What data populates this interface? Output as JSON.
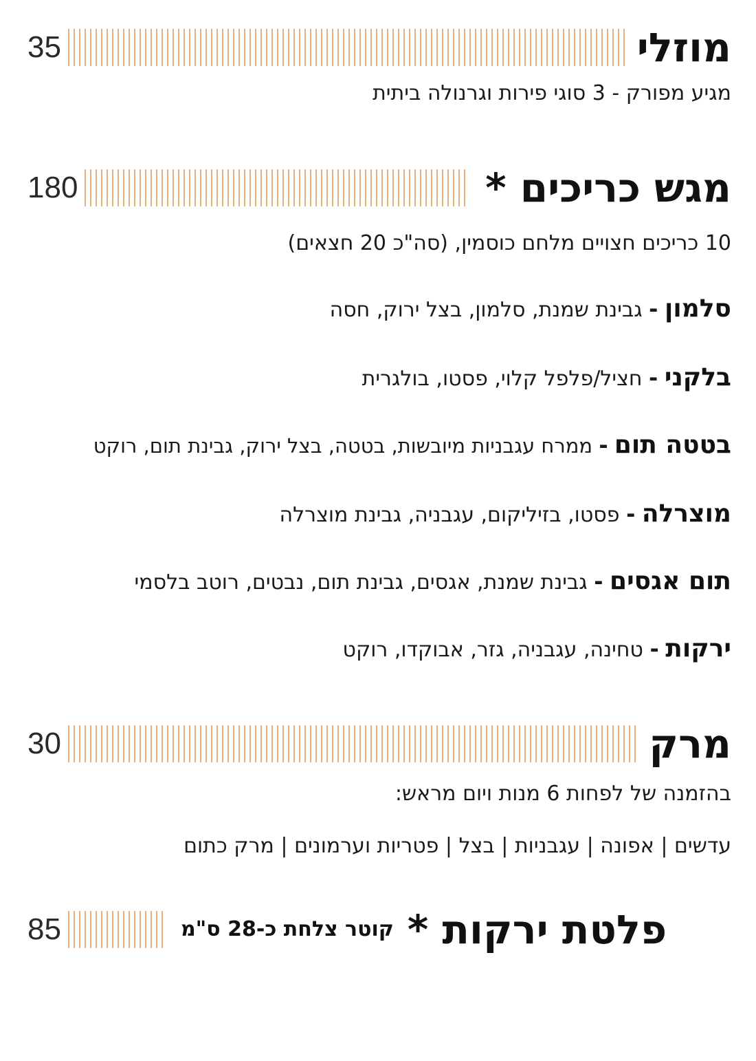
{
  "items": [
    {
      "title": "מוזלי",
      "price": "35",
      "description": "מגיע מפורק - 3 סוגי פירות וגרנולה ביתית"
    },
    {
      "title": "מגש כריכים *",
      "price": "180",
      "description": "10 כריכים חצויים מלחם כוסמין, (סה\"כ 20 חצאים)",
      "variants": [
        {
          "name": "סלמון",
          "separator": "-",
          "desc": "גבינת שמנת, סלמון, בצל ירוק, חסה"
        },
        {
          "name": "בלקני",
          "separator": "-",
          "desc": "חציל/פלפל קלוי, פסטו, בולגרית"
        },
        {
          "name": "בטטה תום",
          "separator": "-",
          "desc": "ממרח עגבניות מיובשות, בטטה, בצל ירוק, גבינת תום, רוקט"
        },
        {
          "name": "מוצרלה",
          "separator": "-",
          "desc": "פסטו, בזיליקום, עגבניה, גבינת מוצרלה"
        },
        {
          "name": "תום אגסים",
          "separator": "-",
          "desc": "גבינת שמנת, אגסים, גבינת תום, נבטים, רוטב בלסמי"
        },
        {
          "name": "ירקות",
          "separator": "-",
          "desc": "טחינה, עגבניה, גזר, אבוקדו, רוקט"
        }
      ]
    },
    {
      "title": "מרק",
      "price": "30",
      "description": "בהזמנה של לפחות 6 מנות ויום מראש:",
      "options": "עדשים | אפונה | עגבניות | בצל | פטריות וערמונים | מרק כתום"
    },
    {
      "title": "פלטת ירקות *",
      "subtitle": "קוטר צלחת כ-28 ס\"מ",
      "price": "85"
    }
  ],
  "colors": {
    "leader": "#e6a46c",
    "text": "#1a1a1a"
  }
}
